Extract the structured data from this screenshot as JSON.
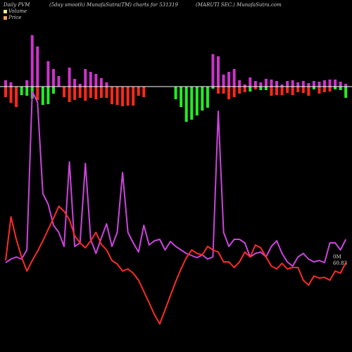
{
  "header": {
    "left": "Daily PVM",
    "smooth": "(5day smooth) MunafaSutra(TM) charts for 531319",
    "company": "(MARUTI SEC.) MunafaSutra.com"
  },
  "legend": [
    {
      "name": "Volume",
      "color": "#f0e68c"
    },
    {
      "name": "Price",
      "color": "#f4a460"
    }
  ],
  "end_label": {
    "line1": "0M",
    "line2": "60.83"
  },
  "colors": {
    "background": "#000000",
    "volume_up": "#cc33cc",
    "volume_down": "#ff2a1a",
    "volume_green": "#22ee22",
    "price_line": "#ff2a2a",
    "volume_line": "#cc44dd",
    "axis_line": "#ffffff"
  },
  "chart_data": {
    "type": "line",
    "n_sessions": 65,
    "bars_up": [
      9,
      6,
      0,
      0,
      9,
      73,
      57,
      0,
      36,
      25,
      15,
      0,
      27,
      11,
      4,
      25,
      21,
      18,
      12,
      6,
      0,
      0,
      0,
      0,
      0,
      0,
      0,
      0,
      0,
      0,
      0,
      0,
      0,
      0,
      0,
      0,
      0,
      0,
      0,
      46,
      43,
      17,
      21,
      25,
      9,
      3,
      13,
      8,
      6,
      11,
      10,
      8,
      3,
      8,
      9,
      6,
      8,
      5,
      8,
      7,
      9,
      10,
      10,
      7,
      4
    ],
    "bars_down": [
      15,
      23,
      29,
      0,
      0,
      0,
      19,
      0,
      0,
      0,
      0,
      15,
      22,
      19,
      16,
      20,
      16,
      18,
      16,
      16,
      25,
      26,
      28,
      27,
      27,
      13,
      15,
      0,
      0,
      0,
      0,
      0,
      0,
      0,
      0,
      0,
      0,
      0,
      0,
      0,
      10,
      10,
      18,
      15,
      10,
      8,
      0,
      4,
      0,
      0,
      13,
      12,
      12,
      9,
      12,
      8,
      9,
      13,
      0,
      10,
      8,
      7,
      0,
      0,
      13
    ],
    "bars_green": [
      0,
      0,
      0,
      0,
      0,
      0,
      0,
      0,
      0,
      0,
      0,
      0,
      0,
      0,
      0,
      0,
      0,
      0,
      0,
      0,
      0,
      0,
      0,
      0,
      0,
      0,
      0,
      0,
      0,
      0,
      0,
      0,
      0,
      0,
      0,
      0,
      0,
      0,
      0,
      0,
      0,
      0,
      0,
      0,
      0,
      0,
      0,
      0,
      0,
      0,
      0,
      0,
      0,
      0,
      0,
      0,
      0,
      0,
      0,
      0,
      0,
      0,
      0,
      0,
      0
    ],
    "green_bars": [
      {
        "i": 3,
        "v": 12
      },
      {
        "i": 4,
        "v": 13
      },
      {
        "i": 5,
        "v": 17
      },
      {
        "i": 7,
        "v": 26
      },
      {
        "i": 8,
        "v": 25
      },
      {
        "i": 9,
        "v": 10
      },
      {
        "i": 32,
        "v": 18
      },
      {
        "i": 33,
        "v": 29
      },
      {
        "i": 34,
        "v": 50
      },
      {
        "i": 35,
        "v": 47
      },
      {
        "i": 36,
        "v": 41
      },
      {
        "i": 37,
        "v": 34
      },
      {
        "i": 38,
        "v": 30
      },
      {
        "i": 39,
        "v": 3
      },
      {
        "i": 46,
        "v": 7
      },
      {
        "i": 48,
        "v": 5
      },
      {
        "i": 49,
        "v": 5
      },
      {
        "i": 58,
        "v": 4
      },
      {
        "i": 62,
        "v": 4
      },
      {
        "i": 63,
        "v": 5
      },
      {
        "i": 64,
        "v": 16
      }
    ],
    "price_series": [
      370,
      308,
      340,
      365,
      385,
      370,
      357,
      342,
      326,
      310,
      293,
      300,
      312,
      335,
      345,
      352,
      342,
      330,
      347,
      355,
      370,
      375,
      385,
      382,
      388,
      398,
      414,
      430,
      447,
      460,
      440,
      420,
      400,
      382,
      366,
      355,
      360,
      362,
      350,
      355,
      358,
      372,
      372,
      380,
      372,
      358,
      365,
      348,
      352,
      365,
      378,
      382,
      374,
      382,
      380,
      380,
      398,
      405,
      392,
      395,
      394,
      398,
      385,
      388,
      373
    ],
    "volume_series": [
      373,
      368,
      365,
      368,
      355,
      130,
      145,
      275,
      290,
      320,
      330,
      350,
      230,
      350,
      345,
      232,
      340,
      360,
      338,
      318,
      350,
      330,
      245,
      330,
      345,
      358,
      320,
      348,
      342,
      340,
      355,
      343,
      350,
      355,
      360,
      363,
      366,
      362,
      368,
      365,
      158,
      330,
      350,
      340,
      340,
      345,
      365,
      360,
      358,
      365,
      350,
      342,
      360,
      372,
      378,
      365,
      360,
      368,
      372,
      370,
      373,
      345,
      345,
      355,
      340
    ]
  }
}
